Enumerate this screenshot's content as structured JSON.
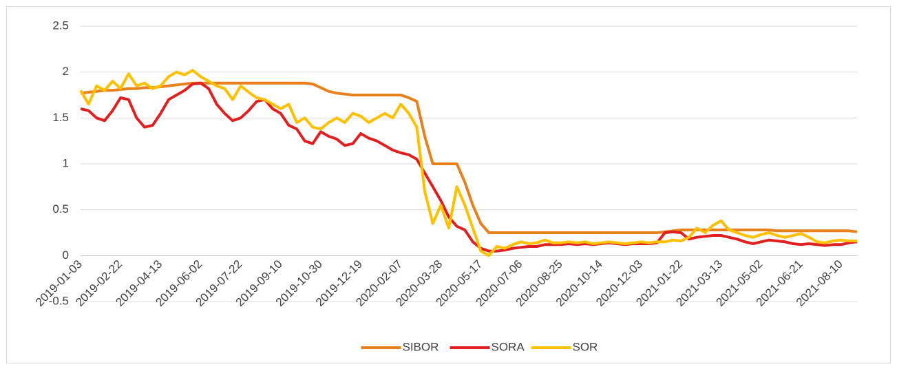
{
  "chart_data": {
    "type": "line",
    "categories": [
      "2019-01-03",
      null,
      null,
      null,
      null,
      "2019-02-22",
      null,
      null,
      null,
      null,
      "2019-04-13",
      null,
      null,
      null,
      null,
      "2019-06-02",
      null,
      null,
      null,
      null,
      "2019-07-22",
      null,
      null,
      null,
      null,
      "2019-09-10",
      null,
      null,
      null,
      null,
      "2019-10-30",
      null,
      null,
      null,
      null,
      "2019-12-19",
      null,
      null,
      null,
      null,
      "2020-02-07",
      null,
      null,
      null,
      null,
      "2020-03-28",
      null,
      null,
      null,
      null,
      "2020-05-17",
      null,
      null,
      null,
      null,
      "2020-07-06",
      null,
      null,
      null,
      null,
      "2020-08-25",
      null,
      null,
      null,
      null,
      "2020-10-14",
      null,
      null,
      null,
      null,
      "2020-12-03",
      null,
      null,
      null,
      null,
      "2021-01-22",
      null,
      null,
      null,
      null,
      "2021-03-13",
      null,
      null,
      null,
      null,
      "2021-05-02",
      null,
      null,
      null,
      null,
      "2021-06-21",
      null,
      null,
      null,
      null,
      "2021-08-10",
      null,
      null
    ],
    "series": [
      {
        "name": "SIBOR",
        "color": "#e8801e",
        "values": [
          1.77,
          1.78,
          1.79,
          1.8,
          1.8,
          1.81,
          1.82,
          1.82,
          1.83,
          1.83,
          1.84,
          1.85,
          1.86,
          1.87,
          1.88,
          1.88,
          1.88,
          1.88,
          1.88,
          1.88,
          1.88,
          1.88,
          1.88,
          1.88,
          1.88,
          1.88,
          1.88,
          1.88,
          1.88,
          1.87,
          1.83,
          1.79,
          1.77,
          1.76,
          1.75,
          1.75,
          1.75,
          1.75,
          1.75,
          1.75,
          1.75,
          1.72,
          1.68,
          1.3,
          1.0,
          1.0,
          1.0,
          1.0,
          0.8,
          0.55,
          0.35,
          0.25,
          0.25,
          0.25,
          0.25,
          0.25,
          0.25,
          0.25,
          0.25,
          0.25,
          0.25,
          0.25,
          0.25,
          0.25,
          0.25,
          0.25,
          0.25,
          0.25,
          0.25,
          0.25,
          0.25,
          0.25,
          0.25,
          0.26,
          0.27,
          0.28,
          0.28,
          0.28,
          0.28,
          0.28,
          0.28,
          0.28,
          0.28,
          0.28,
          0.28,
          0.28,
          0.28,
          0.27,
          0.27,
          0.27,
          0.27,
          0.27,
          0.27,
          0.27,
          0.27,
          0.27,
          0.27,
          0.26
        ]
      },
      {
        "name": "SORA",
        "color": "#e02020",
        "values": [
          1.6,
          1.58,
          1.5,
          1.47,
          1.58,
          1.72,
          1.7,
          1.5,
          1.4,
          1.42,
          1.55,
          1.7,
          1.75,
          1.8,
          1.87,
          1.88,
          1.82,
          1.65,
          1.55,
          1.47,
          1.5,
          1.58,
          1.68,
          1.7,
          1.6,
          1.55,
          1.42,
          1.38,
          1.25,
          1.22,
          1.35,
          1.3,
          1.27,
          1.2,
          1.22,
          1.33,
          1.28,
          1.25,
          1.2,
          1.15,
          1.12,
          1.1,
          1.05,
          0.9,
          0.75,
          0.6,
          0.42,
          0.32,
          0.28,
          0.15,
          0.08,
          0.05,
          0.05,
          0.06,
          0.08,
          0.09,
          0.1,
          0.1,
          0.12,
          0.12,
          0.12,
          0.13,
          0.12,
          0.13,
          0.12,
          0.13,
          0.14,
          0.13,
          0.12,
          0.13,
          0.13,
          0.13,
          0.14,
          0.25,
          0.26,
          0.25,
          0.18,
          0.2,
          0.21,
          0.22,
          0.22,
          0.2,
          0.18,
          0.15,
          0.13,
          0.15,
          0.17,
          0.16,
          0.15,
          0.13,
          0.12,
          0.13,
          0.12,
          0.11,
          0.12,
          0.12,
          0.14,
          0.15
        ]
      },
      {
        "name": "SOR",
        "color": "#ffc000",
        "values": [
          1.8,
          1.65,
          1.85,
          1.8,
          1.9,
          1.82,
          1.98,
          1.85,
          1.88,
          1.82,
          1.85,
          1.95,
          2.0,
          1.97,
          2.02,
          1.95,
          1.9,
          1.85,
          1.82,
          1.7,
          1.85,
          1.78,
          1.72,
          1.7,
          1.65,
          1.6,
          1.65,
          1.45,
          1.5,
          1.4,
          1.38,
          1.45,
          1.5,
          1.45,
          1.55,
          1.52,
          1.45,
          1.5,
          1.55,
          1.5,
          1.65,
          1.55,
          1.4,
          0.7,
          0.35,
          0.55,
          0.3,
          0.75,
          0.55,
          0.3,
          0.05,
          0.0,
          0.1,
          0.08,
          0.12,
          0.15,
          0.13,
          0.14,
          0.17,
          0.14,
          0.14,
          0.15,
          0.14,
          0.15,
          0.13,
          0.14,
          0.15,
          0.14,
          0.13,
          0.14,
          0.15,
          0.14,
          0.15,
          0.15,
          0.17,
          0.16,
          0.2,
          0.3,
          0.25,
          0.33,
          0.38,
          0.28,
          0.25,
          0.22,
          0.2,
          0.23,
          0.25,
          0.22,
          0.2,
          0.22,
          0.24,
          0.2,
          0.15,
          0.14,
          0.16,
          0.17,
          0.16,
          0.16
        ]
      }
    ],
    "ylim": [
      -0.5,
      2.5
    ],
    "yticks": [
      -0.5,
      0,
      0.5,
      1,
      1.5,
      2,
      2.5
    ],
    "grid": true,
    "legend": "bottom"
  }
}
